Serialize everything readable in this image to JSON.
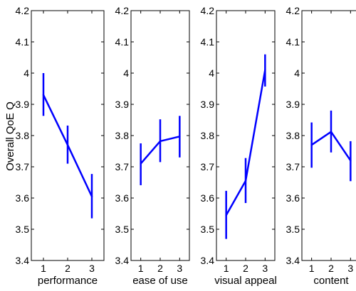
{
  "chart_data": [
    {
      "type": "line",
      "xlabel": "performance",
      "ylabel": "Overall QoE Q",
      "x": [
        1,
        2,
        3
      ],
      "ylim": [
        3.4,
        4.2
      ],
      "yticks": [
        "3.4",
        "3.5",
        "3.6",
        "3.7",
        "3.8",
        "3.9",
        "4",
        "4.1",
        "4.2"
      ],
      "series": [
        {
          "values": [
            3.93,
            3.77,
            3.605
          ],
          "low": [
            3.863,
            3.71,
            3.535
          ],
          "high": [
            4.0,
            3.832,
            3.677
          ],
          "color": "#0000ff"
        }
      ]
    },
    {
      "type": "line",
      "xlabel": "ease of use",
      "x": [
        1,
        2,
        3
      ],
      "ylim": [
        3.4,
        4.2
      ],
      "yticks": [
        "3.4",
        "3.5",
        "3.6",
        "3.7",
        "3.8",
        "3.9",
        "4",
        "4.1",
        "4.2"
      ],
      "series": [
        {
          "values": [
            3.71,
            3.782,
            3.797
          ],
          "low": [
            3.641,
            3.715,
            3.73
          ],
          "high": [
            3.775,
            3.852,
            3.863
          ],
          "color": "#0000ff"
        }
      ]
    },
    {
      "type": "line",
      "xlabel": "visual appeal",
      "x": [
        1,
        2,
        3
      ],
      "ylim": [
        3.4,
        4.2
      ],
      "yticks": [
        "3.4",
        "3.5",
        "3.6",
        "3.7",
        "3.8",
        "3.9",
        "4",
        "4.1",
        "4.2"
      ],
      "series": [
        {
          "values": [
            3.545,
            3.655,
            4.01
          ],
          "low": [
            3.469,
            3.584,
            3.957
          ],
          "high": [
            3.623,
            3.728,
            4.06
          ],
          "color": "#0000ff"
        }
      ]
    },
    {
      "type": "line",
      "xlabel": "content",
      "x": [
        1,
        2,
        3
      ],
      "ylim": [
        3.4,
        4.2
      ],
      "yticks": [
        "3.4",
        "3.5",
        "3.6",
        "3.7",
        "3.8",
        "3.9",
        "4",
        "4.1",
        "4.2"
      ],
      "series": [
        {
          "values": [
            3.77,
            3.812,
            3.72
          ],
          "low": [
            3.697,
            3.746,
            3.654
          ],
          "high": [
            3.842,
            3.88,
            3.782
          ],
          "color": "#0000ff"
        }
      ]
    }
  ]
}
